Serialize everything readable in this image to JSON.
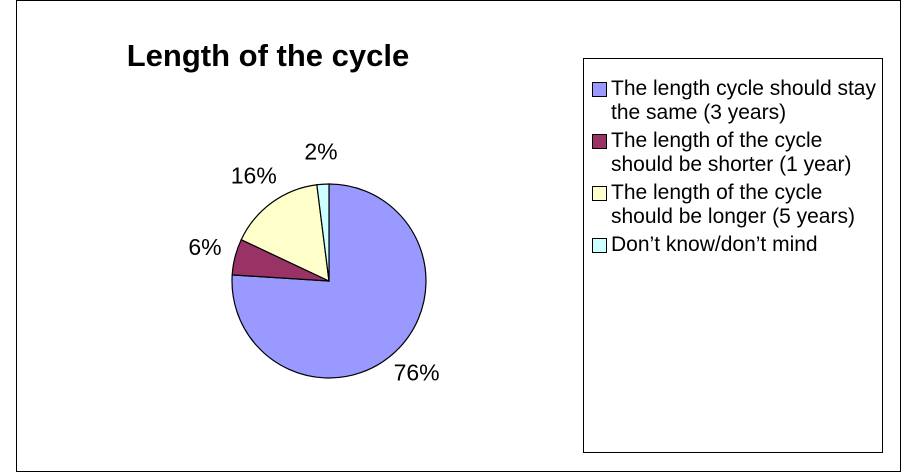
{
  "chart_data": {
    "type": "pie",
    "title": "Length of the cycle",
    "categories": [
      "The length cycle should stay the same (3 years)",
      "The length of the cycle should be shorter (1 year)",
      "The length of the cycle should be longer (5 years)",
      "Don’t know/don’t mind"
    ],
    "values": [
      76,
      6,
      16,
      2
    ],
    "value_labels": [
      "76%",
      "6%",
      "16%",
      "2%"
    ],
    "colors": [
      "#9999ff",
      "#993366",
      "#ffffcc",
      "#ccffff"
    ],
    "legend": "right"
  }
}
